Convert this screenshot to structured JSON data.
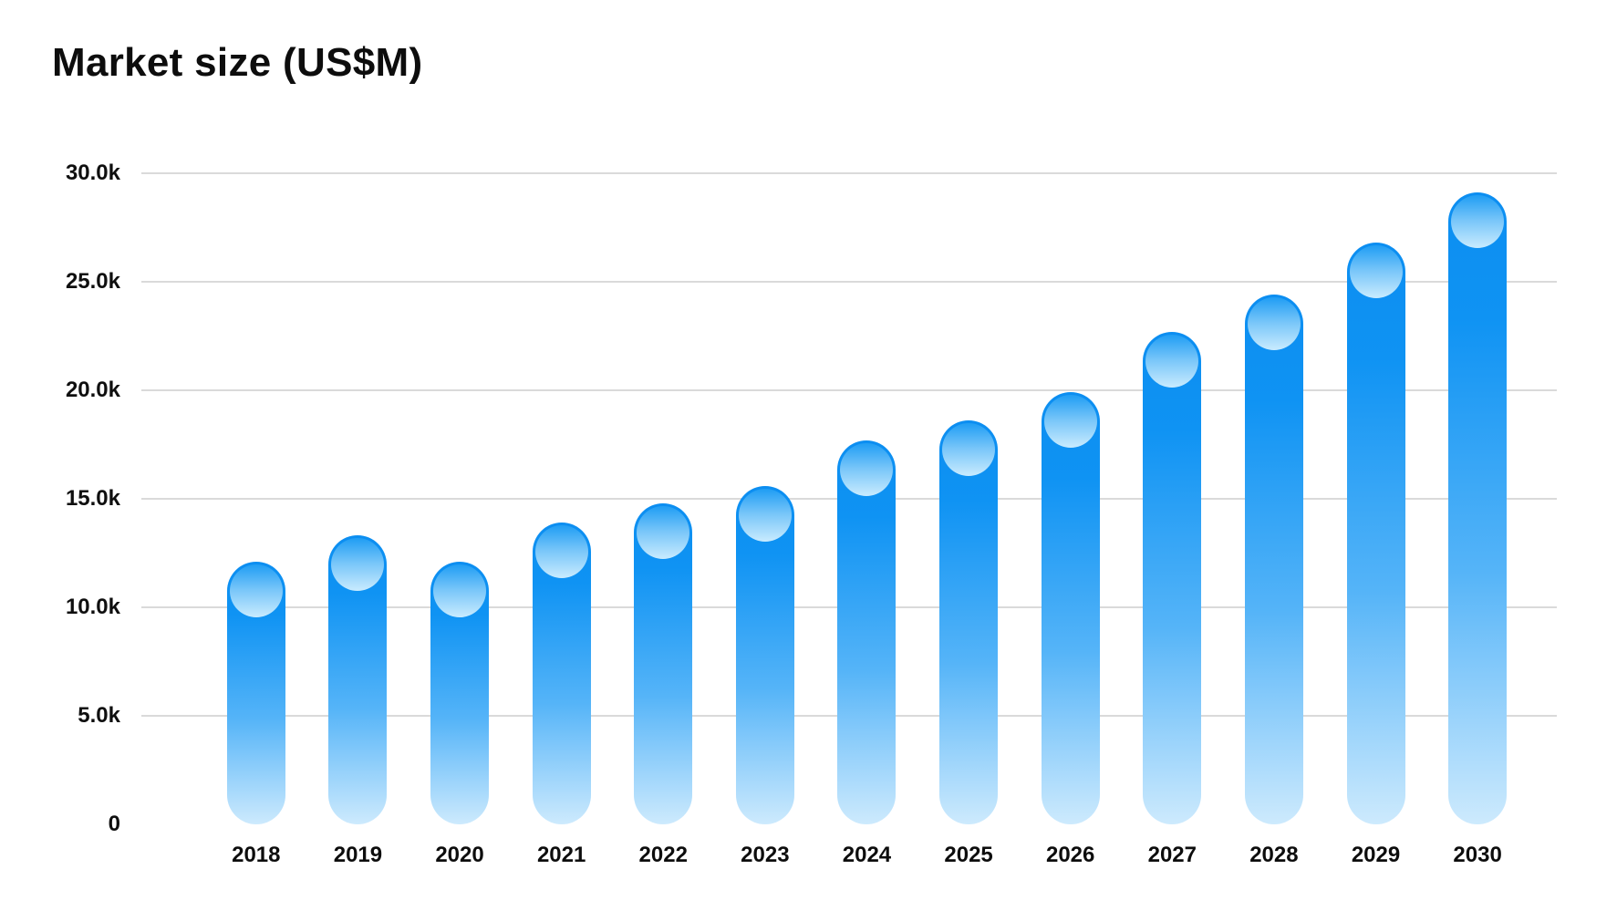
{
  "title": "Market size (US$M)",
  "chart_data": {
    "type": "bar",
    "title": "Market size (US$M)",
    "xlabel": "",
    "ylabel": "",
    "unit_hint": "US$M",
    "categories": [
      "2018",
      "2019",
      "2020",
      "2021",
      "2022",
      "2023",
      "2024",
      "2025",
      "2026",
      "2027",
      "2028",
      "2029",
      "2030"
    ],
    "values": [
      12100,
      13300,
      12100,
      13900,
      14800,
      15600,
      17700,
      18600,
      19900,
      22700,
      24400,
      26800,
      29100
    ],
    "ylim": [
      0,
      30000
    ],
    "yticks": [
      {
        "label": "30.0k",
        "value": 30000
      },
      {
        "label": "25.0k",
        "value": 25000
      },
      {
        "label": "20.0k",
        "value": 20000
      },
      {
        "label": "15.0k",
        "value": 15000
      },
      {
        "label": "10.0k",
        "value": 10000
      },
      {
        "label": "5.0k",
        "value": 5000
      },
      {
        "label": "0",
        "value": 0
      }
    ],
    "grid": "horizontal-only, no zero line, no axis lines, no tick marks",
    "legend": "none",
    "colors": {
      "background": "#ffffff",
      "bar_gradient_top": "#0c8ef1",
      "bar_gradient_mid": "#55b4f8",
      "bar_gradient_bottom": "#cdeafd",
      "ball_gradient_top": "#1f9df4",
      "ball_gradient_bottom": "#c9ebfe",
      "gridline": "#dadada",
      "text": "#0d0d0d"
    }
  }
}
